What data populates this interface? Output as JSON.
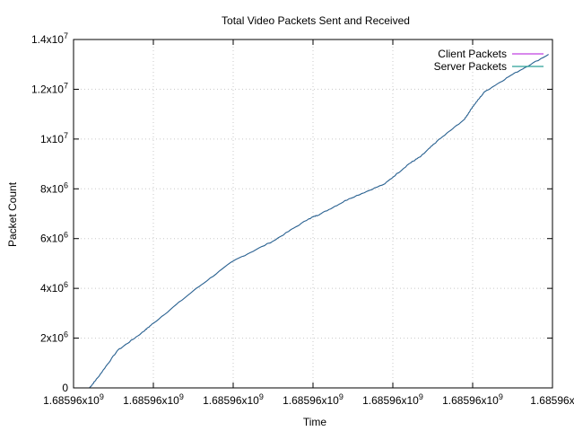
{
  "chart_data": {
    "type": "line",
    "title": "Total Video Packets Sent and Received",
    "xlabel": "Time",
    "ylabel": "Packet Count",
    "grid": true,
    "legend_position": "top-right",
    "x_tick_labels": [
      "1.68596x10^9",
      "1.68596x10^9",
      "1.68596x10^9",
      "1.68596x10^9",
      "1.68596x10^9",
      "1.68596x10^9",
      "1.68596x"
    ],
    "y_ticks": [
      {
        "mantissa": "0",
        "exp": ""
      },
      {
        "mantissa": "2x10",
        "exp": "6"
      },
      {
        "mantissa": "4x10",
        "exp": "6"
      },
      {
        "mantissa": "6x10",
        "exp": "6"
      },
      {
        "mantissa": "8x10",
        "exp": "6"
      },
      {
        "mantissa": "1x10",
        "exp": "7"
      },
      {
        "mantissa": "1.2x10",
        "exp": "7"
      },
      {
        "mantissa": "1.4x10",
        "exp": "7"
      }
    ],
    "ylim": [
      0,
      14000000
    ],
    "x_tick_index": [
      0,
      1,
      2,
      3,
      4,
      5,
      6
    ],
    "xlim_index": [
      0,
      6
    ],
    "series": [
      {
        "name": "Client Packets",
        "color": "#c040e0",
        "x_index": [
          0.2,
          0.3,
          0.55,
          0.85,
          1.0,
          1.5,
          2.0,
          2.5,
          2.95,
          3.1,
          3.45,
          3.9,
          4.2,
          4.35,
          4.55,
          4.9,
          5.0,
          5.15,
          5.5,
          5.95
        ],
        "values": [
          0,
          400000,
          1500000,
          2200000,
          2600000,
          3900000,
          5100000,
          5900000,
          6800000,
          7000000,
          7600000,
          8200000,
          9000000,
          9300000,
          9900000,
          10800000,
          11300000,
          11900000,
          12600000,
          13400000
        ]
      },
      {
        "name": "Server Packets",
        "color": "#2aa198",
        "x_index": [
          0.2,
          0.3,
          0.55,
          0.85,
          1.0,
          1.5,
          2.0,
          2.5,
          2.95,
          3.1,
          3.45,
          3.9,
          4.2,
          4.35,
          4.55,
          4.9,
          5.0,
          5.15,
          5.5,
          5.95
        ],
        "values": [
          0,
          400000,
          1500000,
          2200000,
          2600000,
          3900000,
          5100000,
          5900000,
          6800000,
          7000000,
          7600000,
          8200000,
          9000000,
          9300000,
          9900000,
          10800000,
          11300000,
          11900000,
          12600000,
          13400000
        ]
      }
    ]
  }
}
